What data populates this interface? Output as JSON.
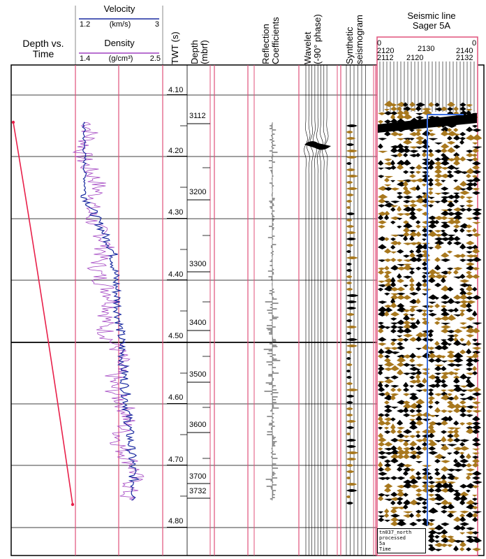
{
  "headers": {
    "depth_vs_time": [
      "Depth vs.",
      "Time"
    ],
    "velocity": {
      "title": "Velocity",
      "min": "1.2",
      "unit": "(km/s)",
      "max": "3"
    },
    "density": {
      "title": "Density",
      "min": "1.4",
      "unit": "(g/cm³)",
      "max": "2.5"
    },
    "twt": "TWT (s)",
    "depth": [
      "Depth",
      "(mbrf)"
    ],
    "reflection": [
      "Reflection",
      "Coefficients"
    ],
    "wavelet": [
      "Wavelet",
      "(-90° phase)"
    ],
    "synthetic": [
      "Synthetic",
      "seismogram"
    ],
    "seismic": [
      "Seismic line",
      "Sager 5A"
    ]
  },
  "seismic_axis": {
    "row1": [
      "0",
      "2120",
      "2130",
      "2140",
      "0"
    ],
    "row2": [
      "2112",
      "2120",
      "2132"
    ]
  },
  "seismic_caption": [
    "tn037_north",
    "processed",
    "5a",
    "Time"
  ],
  "twt_ticks": [
    "4.10",
    "4.20",
    "4.30",
    "4.40",
    "4.50",
    "4.60",
    "4.70",
    "4.80"
  ],
  "depth_ticks": [
    "3112",
    "3200",
    "3300",
    "3400",
    "3500",
    "3600",
    "3700",
    "3732"
  ],
  "colors": {
    "frame": "#e0507a",
    "velocity": "#1a2aa0",
    "density": "#a040c0",
    "depth_time": "#e8204a",
    "seismic_fill": "#a8781e",
    "well_line": "#3a6ee0"
  }
}
